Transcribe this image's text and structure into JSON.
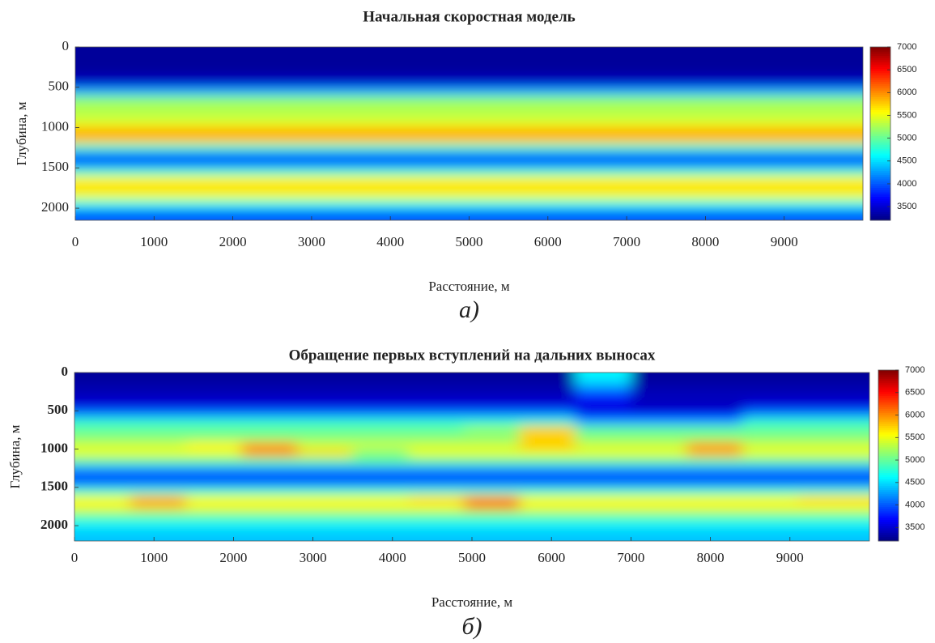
{
  "chart_data": [
    {
      "type": "heatmap",
      "title": "Начальная скоростная модель",
      "x_label": "Расстояние, м",
      "y_label": "Глубина, м",
      "caption": "а)",
      "colormap": "jet",
      "clim": [
        3200,
        7000
      ],
      "colorbar_ticks": [
        3500,
        4000,
        4500,
        5000,
        5500,
        6000,
        6500,
        7000
      ],
      "xlim": [
        0,
        10000
      ],
      "xticks": [
        0,
        1000,
        2000,
        3000,
        4000,
        5000,
        6000,
        7000,
        8000,
        9000
      ],
      "ylim": [
        0,
        2150
      ],
      "y_reversed": true,
      "yticks": [
        0,
        500,
        1000,
        1500,
        2000
      ],
      "y": [
        50,
        150,
        250,
        350,
        450,
        550,
        650,
        750,
        850,
        950,
        1050,
        1150,
        1250,
        1350,
        1450,
        1550,
        1650,
        1750,
        1850,
        1950,
        2050,
        2150
      ],
      "values": [
        3300,
        3300,
        3300,
        3350,
        3500,
        4300,
        5100,
        5300,
        5300,
        5500,
        5900,
        5800,
        4800,
        4000,
        4100,
        4800,
        5600,
        5700,
        5500,
        4700,
        4100,
        4000
      ]
    },
    {
      "type": "heatmap",
      "title": "Обращение первых вступлений на дальних выносах",
      "x_label": "Расстояние, м",
      "y_label": "Глубина, м",
      "caption": "б)",
      "colormap": "jet",
      "clim": [
        3200,
        7000
      ],
      "colorbar_ticks": [
        3500,
        4000,
        4500,
        5000,
        5500,
        6000,
        6500,
        7000
      ],
      "xlim": [
        0,
        10000
      ],
      "xticks": [
        0,
        1000,
        2000,
        3000,
        4000,
        5000,
        6000,
        7000,
        8000,
        9000
      ],
      "ylim": [
        0,
        2200
      ],
      "y_reversed": true,
      "yticks": [
        0,
        500,
        1000,
        1500,
        2000
      ],
      "x": [
        350,
        1050,
        1750,
        2450,
        3150,
        3850,
        4550,
        5250,
        5950,
        6650,
        7350,
        8050,
        8750,
        9450
      ],
      "y": [
        50,
        150,
        250,
        350,
        450,
        550,
        650,
        750,
        850,
        950,
        1050,
        1150,
        1250,
        1350,
        1450,
        1550,
        1650,
        1750,
        1850,
        1950,
        2050,
        2150
      ],
      "values": [
        [
          3300,
          3300,
          3300,
          3300,
          3300,
          3300,
          3300,
          3300,
          3300,
          4600,
          3300,
          3300,
          3300,
          3300
        ],
        [
          3350,
          3350,
          3350,
          3350,
          3350,
          3350,
          3350,
          3350,
          3350,
          4400,
          3350,
          3350,
          3350,
          3350
        ],
        [
          3400,
          3400,
          3400,
          3400,
          3400,
          3400,
          3400,
          3400,
          3400,
          4000,
          3400,
          3400,
          3400,
          3400
        ],
        [
          3450,
          3450,
          3450,
          3450,
          3450,
          3450,
          3450,
          3450,
          3450,
          3700,
          3450,
          3450,
          3450,
          3450
        ],
        [
          3600,
          3600,
          3600,
          3600,
          3600,
          3600,
          3600,
          3600,
          3600,
          3500,
          3400,
          3400,
          3600,
          3600
        ],
        [
          4200,
          4200,
          4200,
          4200,
          4200,
          4200,
          4200,
          4200,
          4200,
          3700,
          3700,
          3700,
          4200,
          4200
        ],
        [
          4800,
          4800,
          4800,
          4800,
          4800,
          4800,
          4800,
          4800,
          4800,
          4300,
          4300,
          4300,
          4800,
          4800
        ],
        [
          5000,
          5000,
          5000,
          5000,
          5000,
          5000,
          5000,
          5200,
          5800,
          5000,
          5000,
          5000,
          5000,
          5000
        ],
        [
          5100,
          5100,
          5100,
          5100,
          5100,
          5100,
          5100,
          5100,
          5700,
          5100,
          5100,
          5100,
          5100,
          5100
        ],
        [
          5400,
          5400,
          5600,
          5900,
          5400,
          5400,
          5400,
          5400,
          5800,
          5400,
          5400,
          5900,
          5400,
          5400
        ],
        [
          5500,
          5500,
          5500,
          6000,
          5700,
          5100,
          5500,
          5500,
          5500,
          5500,
          5500,
          5900,
          5500,
          5500
        ],
        [
          5000,
          5000,
          5000,
          5000,
          5000,
          5000,
          5000,
          5000,
          5000,
          5000,
          5000,
          5000,
          5000,
          5000
        ],
        [
          4300,
          4300,
          4300,
          4300,
          4300,
          4300,
          4300,
          4300,
          4300,
          4300,
          4300,
          4300,
          4300,
          4300
        ],
        [
          3900,
          3900,
          3900,
          3900,
          3900,
          3900,
          3900,
          3900,
          3900,
          3900,
          3900,
          3900,
          3900,
          3900
        ],
        [
          4100,
          4100,
          4100,
          4100,
          4100,
          4100,
          4100,
          4100,
          4100,
          4100,
          4100,
          4100,
          4100,
          4100
        ],
        [
          4800,
          4800,
          4800,
          4800,
          4800,
          4800,
          4800,
          4800,
          4800,
          4800,
          4800,
          4800,
          4800,
          4800
        ],
        [
          5500,
          5900,
          5500,
          5500,
          5500,
          5500,
          5700,
          6000,
          5500,
          5500,
          5500,
          5500,
          5500,
          5700
        ],
        [
          5600,
          5800,
          5600,
          5600,
          5600,
          5600,
          5600,
          6000,
          5600,
          5600,
          5600,
          5600,
          5600,
          5600
        ],
        [
          5100,
          5100,
          5100,
          5100,
          5100,
          5100,
          5100,
          5100,
          5100,
          5100,
          5100,
          5100,
          5100,
          5100
        ],
        [
          4700,
          4700,
          4700,
          4700,
          4700,
          4700,
          4700,
          4700,
          4700,
          4700,
          4700,
          4700,
          4700,
          4700
        ],
        [
          4500,
          4500,
          4500,
          4500,
          4500,
          4500,
          4500,
          4500,
          4500,
          4500,
          4500,
          4500,
          4500,
          4500
        ],
        [
          4400,
          4400,
          4400,
          4400,
          4400,
          4400,
          4400,
          4400,
          4400,
          4400,
          4400,
          4400,
          4400,
          4400
        ]
      ]
    }
  ]
}
